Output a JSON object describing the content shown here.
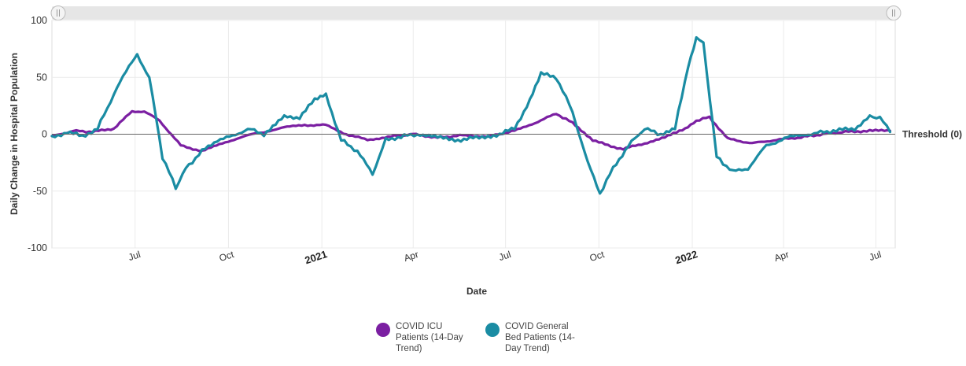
{
  "chart_data": {
    "type": "line",
    "title": "",
    "xlabel": "Date",
    "ylabel": "Daily Change in Hospital Population",
    "ylim": [
      -100,
      100
    ],
    "yticks": [
      -100,
      -50,
      0,
      50,
      100
    ],
    "xlim": [
      "2020-04-10",
      "2022-07-20"
    ],
    "x_ticks": [
      {
        "date": "2020-07-01",
        "label": "Jul",
        "year": false
      },
      {
        "date": "2020-10-01",
        "label": "Oct",
        "year": false
      },
      {
        "date": "2021-01-01",
        "label": "2021",
        "year": true
      },
      {
        "date": "2021-04-01",
        "label": "Apr",
        "year": false
      },
      {
        "date": "2021-07-01",
        "label": "Jul",
        "year": false
      },
      {
        "date": "2021-10-01",
        "label": "Oct",
        "year": false
      },
      {
        "date": "2022-01-01",
        "label": "2022",
        "year": true
      },
      {
        "date": "2022-04-01",
        "label": "Apr",
        "year": false
      },
      {
        "date": "2022-07-01",
        "label": "Jul",
        "year": false
      }
    ],
    "grid": true,
    "threshold": {
      "value": 0,
      "label": "Threshold (0)"
    },
    "navigator": {
      "present": true
    },
    "legend_position": "bottom-center",
    "series": [
      {
        "name": "COVID ICU Patients (14-Day Trend)",
        "color": "#7b1fa2",
        "x": [
          "2020-04-10",
          "2020-05-01",
          "2020-05-20",
          "2020-06-10",
          "2020-06-28",
          "2020-07-10",
          "2020-07-25",
          "2020-08-15",
          "2020-09-05",
          "2020-09-25",
          "2020-10-15",
          "2020-11-05",
          "2020-11-25",
          "2020-12-15",
          "2021-01-05",
          "2021-01-25",
          "2021-02-15",
          "2021-03-10",
          "2021-04-01",
          "2021-04-25",
          "2021-05-20",
          "2021-06-15",
          "2021-07-10",
          "2021-07-30",
          "2021-08-20",
          "2021-09-05",
          "2021-09-25",
          "2021-10-10",
          "2021-10-25",
          "2021-11-15",
          "2021-12-05",
          "2021-12-25",
          "2022-01-05",
          "2022-01-18",
          "2022-02-05",
          "2022-03-01",
          "2022-03-25",
          "2022-04-15",
          "2022-05-10",
          "2022-06-01",
          "2022-06-25",
          "2022-07-15"
        ],
        "y": [
          -2,
          3,
          2,
          5,
          20,
          20,
          12,
          -10,
          -15,
          -8,
          -2,
          2,
          6,
          8,
          8,
          0,
          -5,
          -2,
          0,
          -3,
          -1,
          -2,
          3,
          10,
          18,
          10,
          -5,
          -10,
          -13,
          -8,
          -3,
          5,
          12,
          15,
          -4,
          -8,
          -5,
          -3,
          0,
          2,
          3,
          3
        ]
      },
      {
        "name": "COVID General Bed Patients (14-Day Trend)",
        "color": "#1a8ca3",
        "x": [
          "2020-04-10",
          "2020-04-25",
          "2020-05-10",
          "2020-05-25",
          "2020-06-10",
          "2020-06-25",
          "2020-07-03",
          "2020-07-15",
          "2020-07-28",
          "2020-08-10",
          "2020-08-20",
          "2020-09-05",
          "2020-09-20",
          "2020-10-05",
          "2020-10-20",
          "2020-11-05",
          "2020-11-25",
          "2020-12-10",
          "2020-12-25",
          "2021-01-05",
          "2021-01-20",
          "2021-02-05",
          "2021-02-20",
          "2021-03-05",
          "2021-03-20",
          "2021-04-05",
          "2021-04-25",
          "2021-05-15",
          "2021-06-05",
          "2021-06-25",
          "2021-07-10",
          "2021-07-25",
          "2021-08-05",
          "2021-08-20",
          "2021-09-05",
          "2021-09-20",
          "2021-10-02",
          "2021-10-15",
          "2021-10-30",
          "2021-11-15",
          "2021-12-01",
          "2021-12-15",
          "2021-12-28",
          "2022-01-05",
          "2022-01-12",
          "2022-01-25",
          "2022-02-10",
          "2022-02-25",
          "2022-03-15",
          "2022-04-05",
          "2022-04-25",
          "2022-05-20",
          "2022-06-10",
          "2022-06-25",
          "2022-07-05",
          "2022-07-15"
        ],
        "y": [
          -3,
          2,
          -2,
          5,
          35,
          60,
          70,
          50,
          -20,
          -47,
          -30,
          -15,
          -5,
          -2,
          5,
          0,
          15,
          15,
          30,
          35,
          -5,
          -15,
          -35,
          -5,
          -2,
          0,
          -3,
          -5,
          -3,
          0,
          5,
          30,
          53,
          50,
          20,
          -25,
          -52,
          -30,
          -10,
          5,
          0,
          5,
          60,
          85,
          80,
          -20,
          -33,
          -30,
          -10,
          -3,
          0,
          3,
          5,
          15,
          15,
          2
        ]
      }
    ]
  }
}
